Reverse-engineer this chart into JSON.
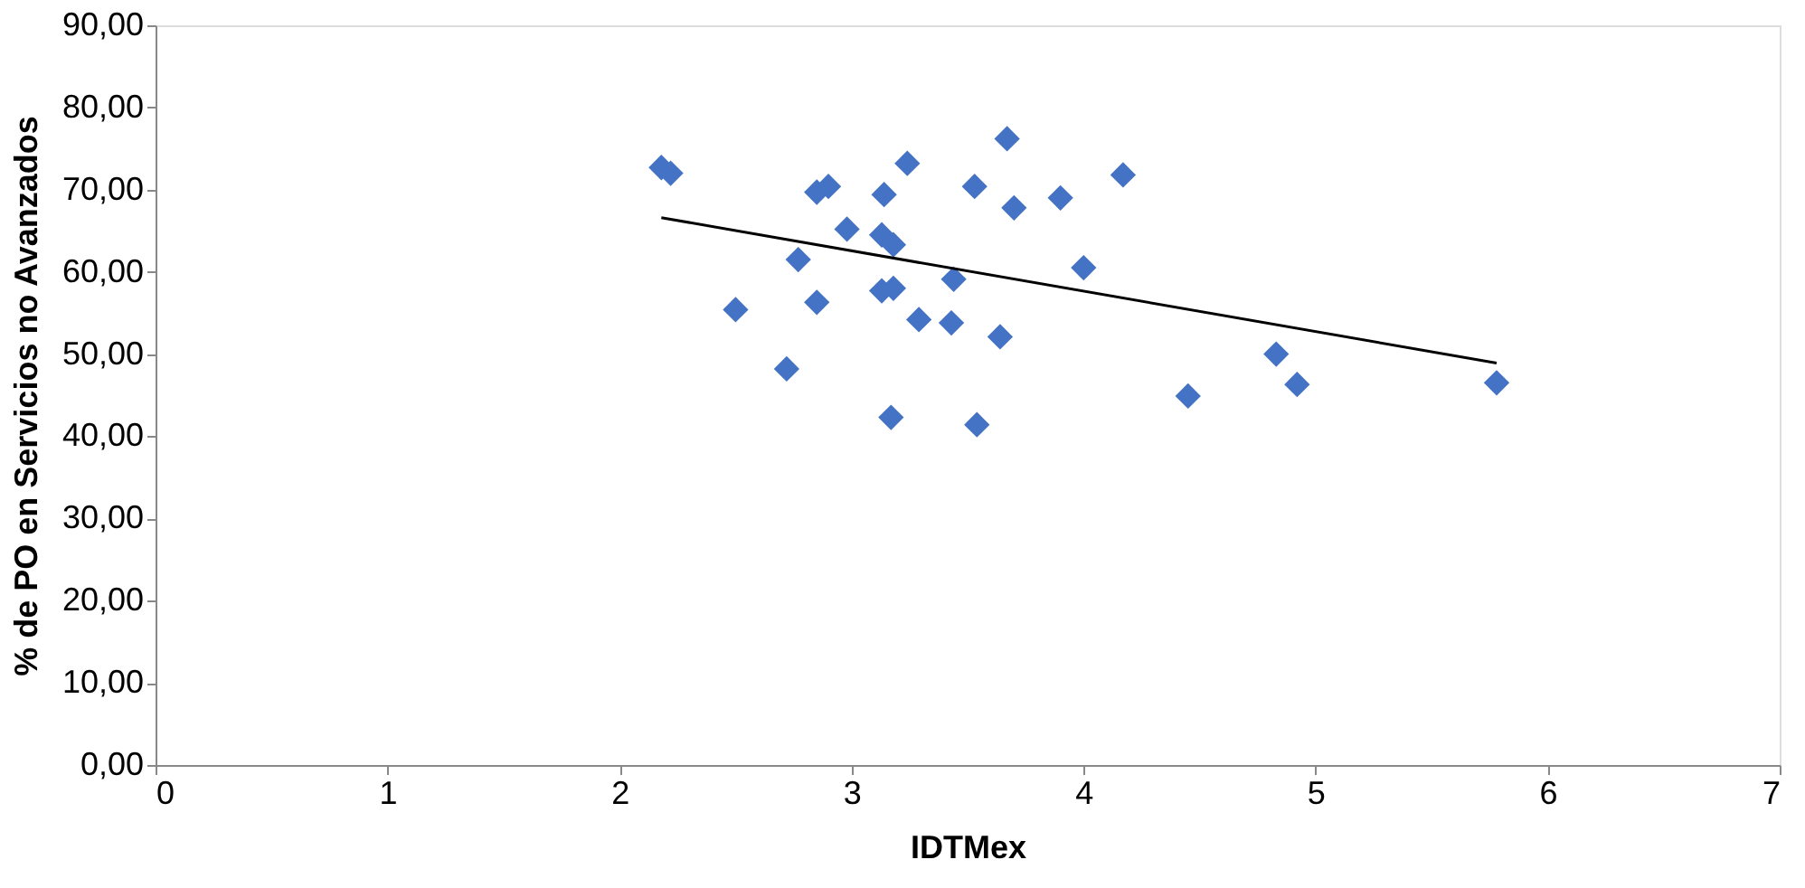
{
  "chart_data": {
    "type": "scatter",
    "xlabel": "IDTMex",
    "ylabel": "% de PO en Servicios no Avanzados",
    "xlim": [
      0,
      7
    ],
    "xticks": [
      0,
      1,
      2,
      3,
      4,
      5,
      6,
      7
    ],
    "ylim": [
      0,
      90
    ],
    "yticks": [
      {
        "value": 0,
        "label": "0,00"
      },
      {
        "value": 10,
        "label": "10,00"
      },
      {
        "value": 20,
        "label": "20,00"
      },
      {
        "value": 30,
        "label": "30,00"
      },
      {
        "value": 40,
        "label": "40,00"
      },
      {
        "value": 50,
        "label": "50,00"
      },
      {
        "value": 60,
        "label": "60,00"
      },
      {
        "value": 70,
        "label": "70,00"
      },
      {
        "value": 80,
        "label": "80,00"
      },
      {
        "value": 90,
        "label": "90,00"
      }
    ],
    "grid": false,
    "series": [
      {
        "type": "scatter",
        "marker": "diamond",
        "color": "#4472c4",
        "x": [
          2.18,
          2.22,
          2.5,
          2.77,
          2.72,
          2.85,
          2.85,
          2.9,
          2.98,
          3.14,
          3.24,
          3.13,
          3.18,
          3.13,
          3.18,
          3.17,
          3.29,
          3.44,
          3.43,
          3.53,
          3.54,
          3.64,
          3.67,
          3.7,
          3.9,
          4.0,
          4.17,
          4.45,
          4.83,
          4.92,
          5.78
        ],
        "values": [
          72.7,
          72.0,
          55.4,
          61.5,
          48.2,
          56.3,
          69.7,
          70.4,
          65.2,
          69.4,
          73.2,
          64.5,
          63.3,
          57.7,
          58.0,
          42.3,
          54.2,
          59.1,
          53.8,
          70.4,
          41.4,
          52.1,
          76.2,
          67.8,
          69.0,
          60.5,
          71.8,
          44.9,
          50.0,
          46.3,
          46.5
        ]
      },
      {
        "type": "line",
        "marker": "none",
        "color": "#000000",
        "x": [
          2.18,
          5.78
        ],
        "values": [
          66.6,
          48.9
        ]
      }
    ]
  }
}
